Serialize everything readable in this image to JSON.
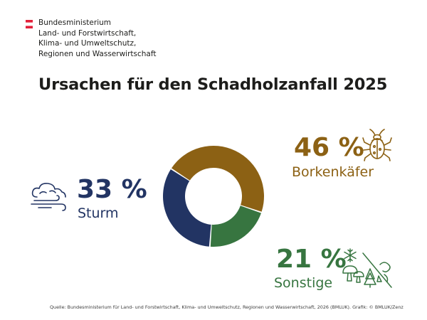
{
  "header": {
    "ministry_lines": [
      "Bundesministerium",
      "Land- und Forstwirtschaft,",
      "Klima- und Umweltschutz,",
      "Regionen und Wasserwirtschaft"
    ]
  },
  "chart_data": {
    "type": "pie",
    "title": "Ursachen für den Schadholzanfall 2025",
    "categories": [
      "Borkenkäfer",
      "Sonstige",
      "Sturm"
    ],
    "values": [
      46,
      21,
      33
    ],
    "value_labels": [
      "46 %",
      "21 %",
      "33 %"
    ],
    "colors": [
      "#8c6114",
      "#377540",
      "#223463"
    ],
    "unit": "%",
    "donut": true
  },
  "colors": {
    "flag_red": "#e2203a"
  },
  "icons": {
    "borkenkaefer": "beetle-icon",
    "sonstige": [
      "snowflake-icon",
      "mushrooms-icon",
      "fir-tree-icon",
      "drought-icon"
    ],
    "sturm": "storm-cloud-icon"
  },
  "footer": {
    "source": "Quelle: Bundesministerium für Land- und Forstwirtschaft, Klima- und Umweltschutz, Regionen und Wasserwirtschaft, 2026 (BMLUK). Grafik: © BMLUK/Zenz"
  }
}
